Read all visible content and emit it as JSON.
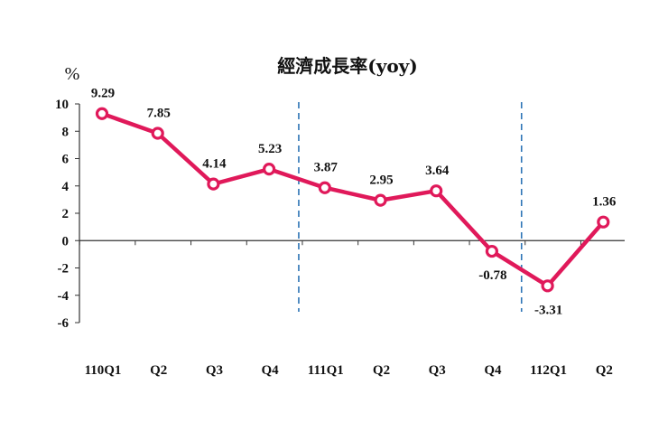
{
  "chart_data": {
    "type": "line",
    "title": "經濟成長率(yoy)",
    "ylabel": "%",
    "xlabel": "",
    "categories": [
      "110Q1",
      "Q2",
      "Q3",
      "Q4",
      "111Q1",
      "Q2",
      "Q3",
      "Q4",
      "112Q1",
      "Q2"
    ],
    "series": [
      {
        "values": [
          9.29,
          7.85,
          4.14,
          5.23,
          3.87,
          2.95,
          3.64,
          -0.78,
          -3.31,
          1.36
        ]
      }
    ],
    "data_labels": [
      "9.29",
      "7.85",
      "4.14",
      "5.23",
      "3.87",
      "2.95",
      "3.64",
      "-0.78",
      "-3.31",
      "1.36"
    ],
    "yticks": [
      10,
      8,
      6,
      4,
      2,
      0,
      -2,
      -4,
      -6
    ],
    "ytick_labels": [
      "10",
      "8",
      "6",
      "4",
      "2",
      "0",
      "-2",
      "-4",
      "-6"
    ],
    "ylim": [
      -6,
      10
    ],
    "year_dividers_after": [
      "Q4",
      "Q4"
    ],
    "grid": false,
    "legend": "none",
    "colors": {
      "line": "#e0195a",
      "marker_fill": "#ffffff",
      "divider": "#2e75b6",
      "axis": "#333333"
    }
  }
}
